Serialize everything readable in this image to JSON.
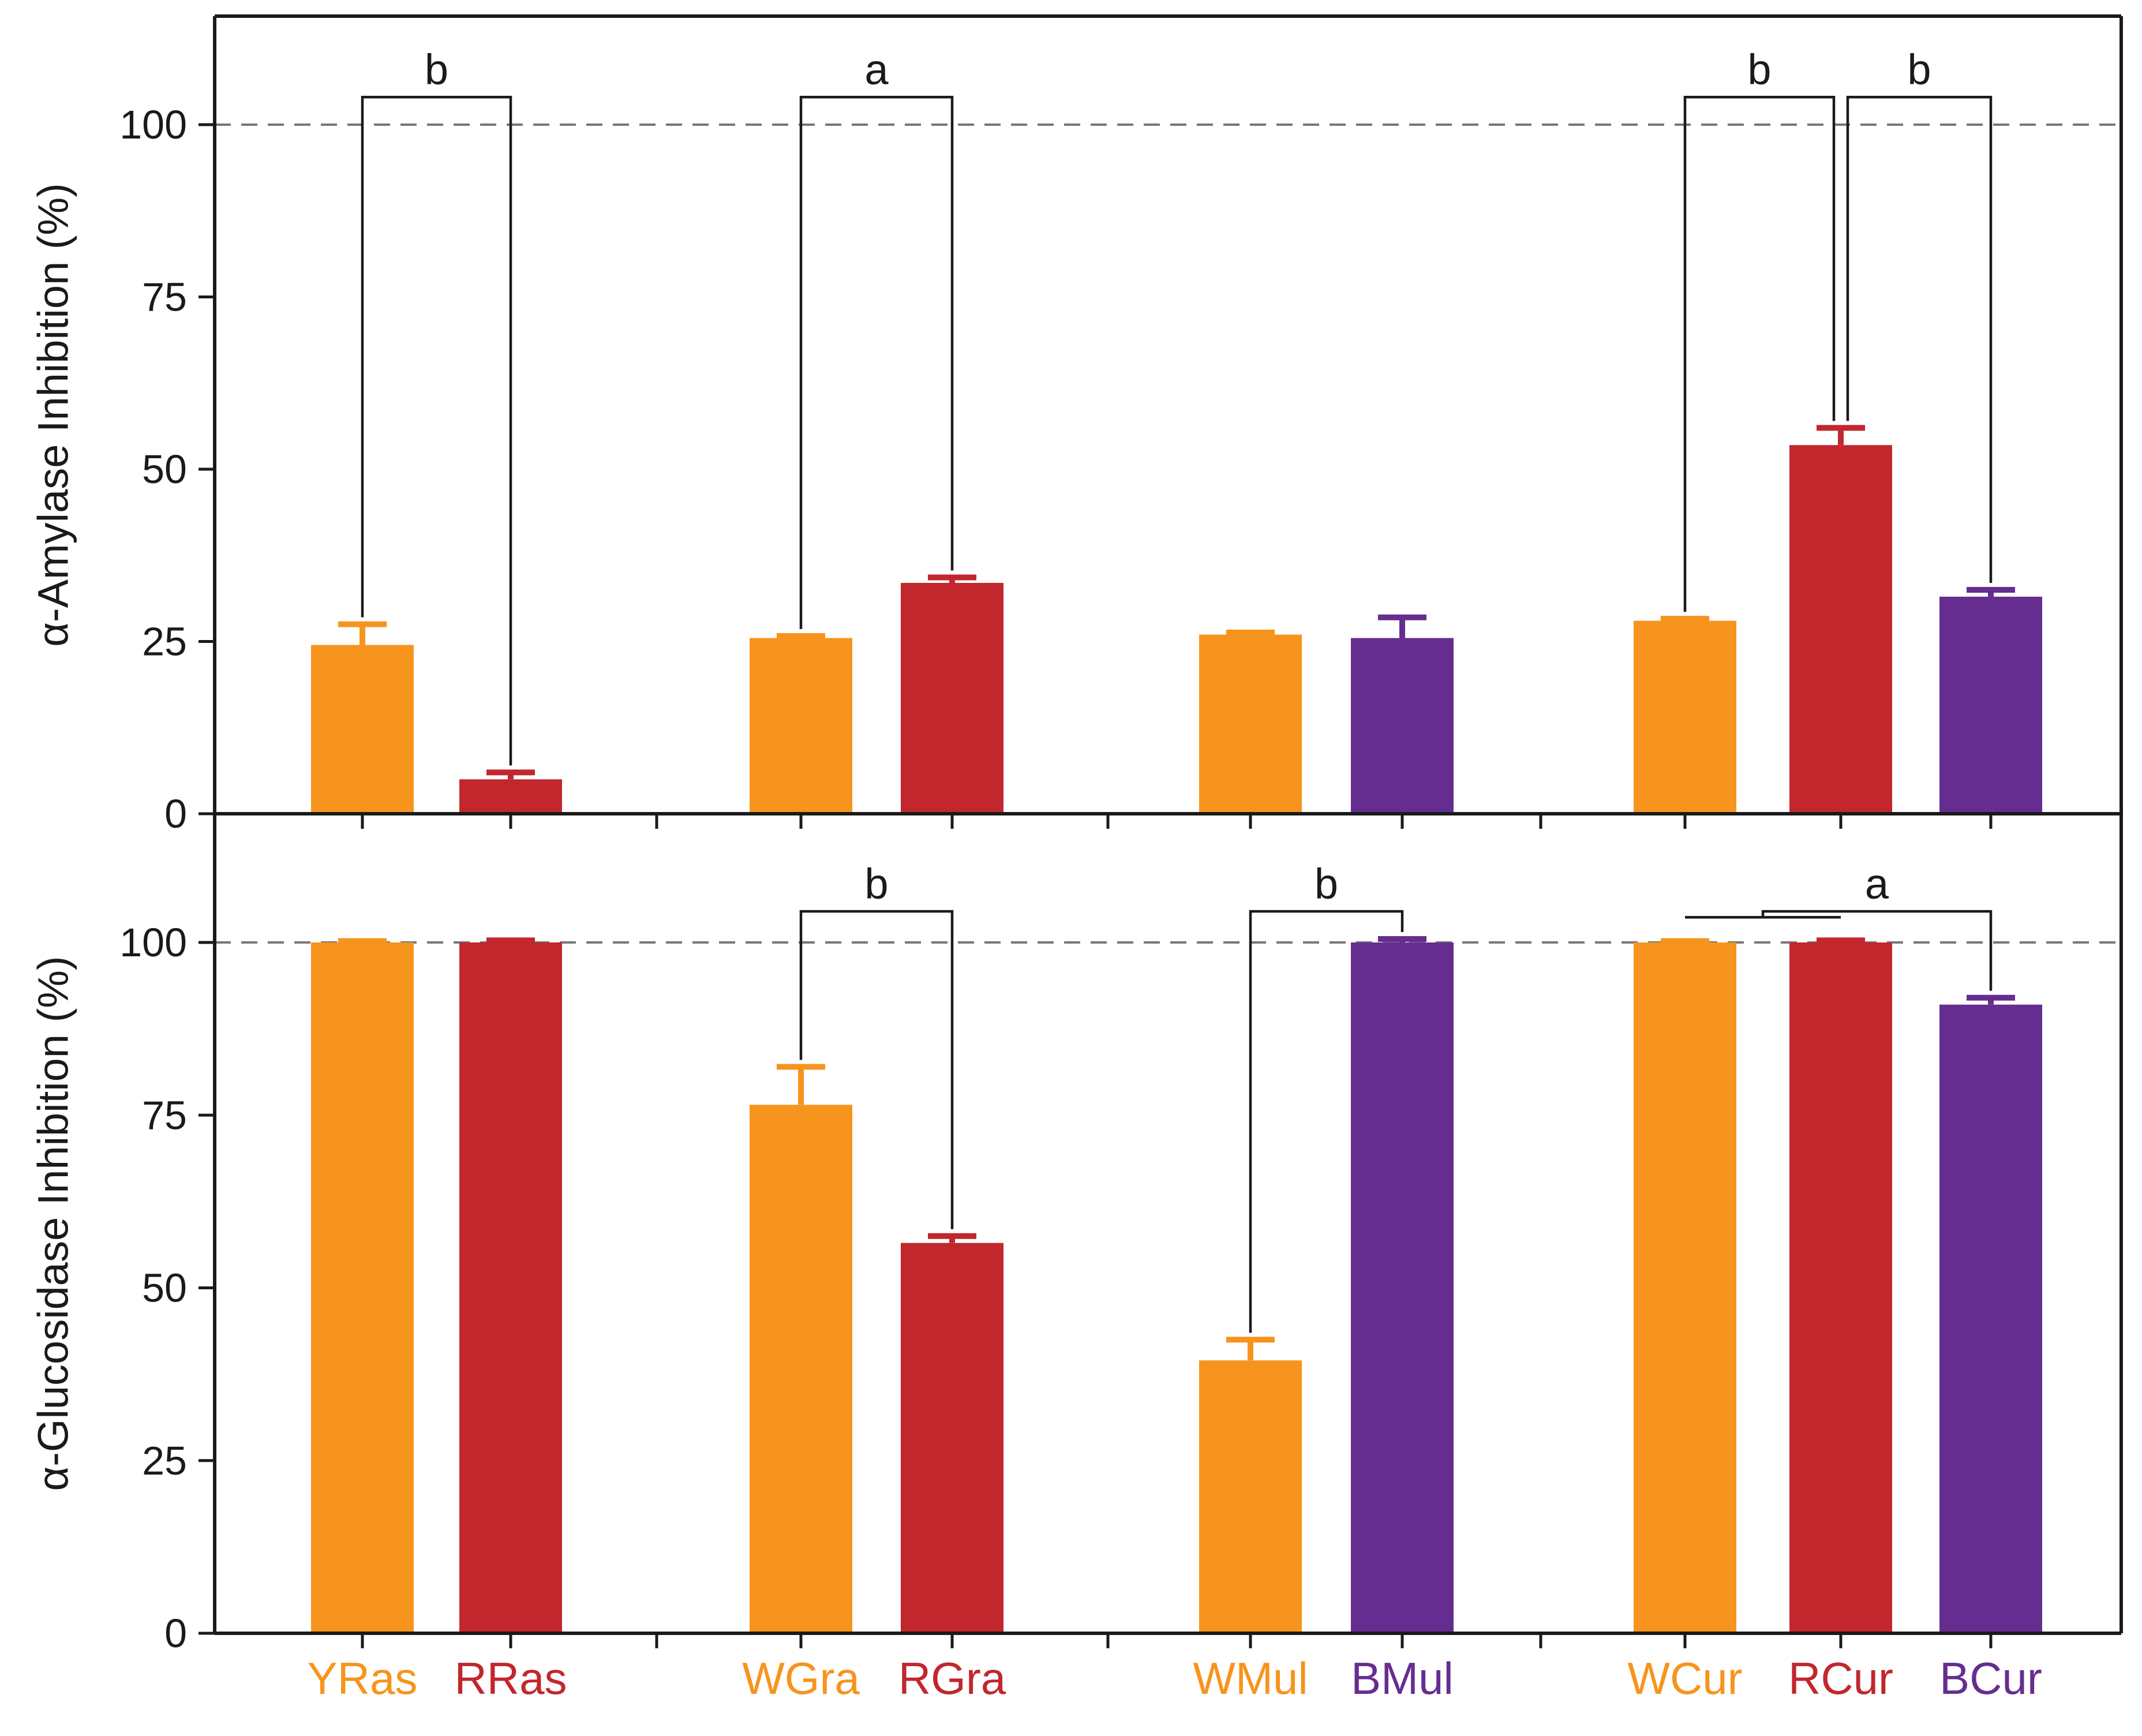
{
  "chart_data": {
    "type": "bar",
    "layout": "two vertically stacked panels sharing x categories",
    "groups": [
      {
        "name": "Ras",
        "bars": [
          "YRas",
          "RRas"
        ]
      },
      {
        "name": "Gra",
        "bars": [
          "WGra",
          "RGra"
        ]
      },
      {
        "name": "Mul",
        "bars": [
          "WMul",
          "BMul"
        ]
      },
      {
        "name": "Cur",
        "bars": [
          "WCur",
          "RCur",
          "BCur"
        ]
      }
    ],
    "categories": [
      "YRas",
      "RRas",
      "WGra",
      "RGra",
      "WMul",
      "BMul",
      "WCur",
      "RCur",
      "BCur"
    ],
    "category_colors": [
      "#F7941D",
      "#C1272D",
      "#F7941D",
      "#C1272D",
      "#F7941D",
      "#662D91",
      "#F7941D",
      "#C1272D",
      "#662D91"
    ],
    "reference_line": 100,
    "panels": [
      {
        "ylabel": "α-Amylase Inhibition (%)",
        "ylim": [
          0,
          115
        ],
        "yticks": [
          0,
          25,
          50,
          75,
          100
        ],
        "values": [
          24.5,
          5.0,
          25.5,
          33.5,
          26.0,
          25.5,
          28.0,
          53.5,
          31.5
        ],
        "errors": [
          3.0,
          1.0,
          0.3,
          0.8,
          0.3,
          3.0,
          0.3,
          2.5,
          1.0
        ],
        "comparisons": [
          {
            "from": "YRas",
            "to": "RRas",
            "label": "b"
          },
          {
            "from": "WGra",
            "to": "RGra",
            "label": "a"
          },
          {
            "from": "WCur",
            "to": "RCur",
            "label": "b"
          },
          {
            "from": "RCur",
            "to": "BCur",
            "label": "b"
          }
        ]
      },
      {
        "ylabel": "α-Glucosidase Inhibition (%)",
        "ylim": [
          0,
          115
        ],
        "yticks": [
          0,
          25,
          50,
          75,
          100
        ],
        "values": [
          100.0,
          100.0,
          76.5,
          56.5,
          39.5,
          100.0,
          100.0,
          100.0,
          91.0
        ],
        "errors": [
          0.2,
          0.3,
          5.5,
          1.0,
          3.0,
          0.5,
          0.2,
          0.3,
          1.0
        ],
        "comparisons": [
          {
            "from": "WGra",
            "to": "RGra",
            "label": "b"
          },
          {
            "from": "WMul",
            "to": "BMul",
            "label": "b"
          },
          {
            "from": "WCur+RCur",
            "to": "BCur",
            "label": "a"
          }
        ]
      }
    ]
  }
}
